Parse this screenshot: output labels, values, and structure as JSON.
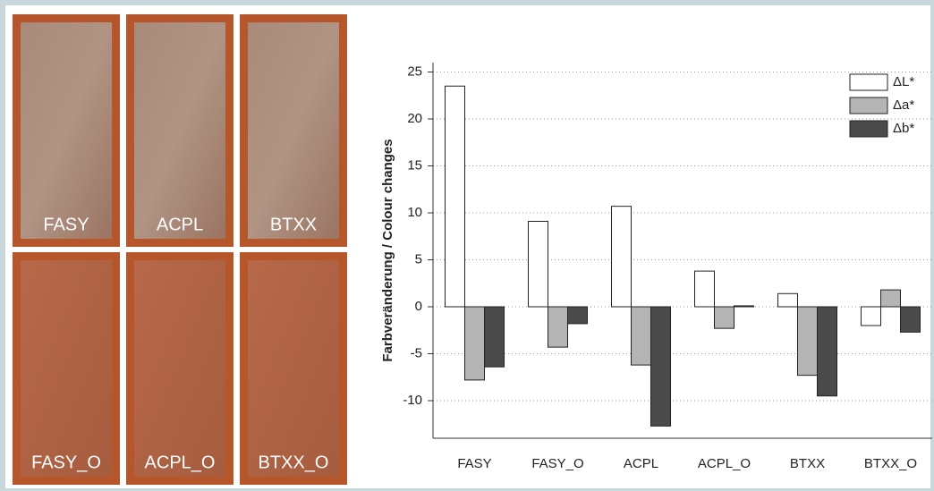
{
  "photo_labels": [
    "FASY",
    "ACPL",
    "BTXX",
    "FASY_O",
    "ACPL_O",
    "BTXX_O"
  ],
  "chart_data": {
    "type": "bar",
    "y_label": "Farbveränderung / Colour changes",
    "categories": [
      "FASY",
      "FASY_O",
      "ACPL",
      "ACPL_O",
      "BTXX",
      "BTXX_O"
    ],
    "series": [
      {
        "name": "ΔL*",
        "color": "#ffffff",
        "values": [
          23.5,
          9.1,
          10.7,
          3.8,
          1.4,
          -2.0
        ]
      },
      {
        "name": "Δa*",
        "color": "#b4b4b4",
        "values": [
          -7.8,
          -4.3,
          -6.2,
          -2.3,
          -7.3,
          1.8
        ]
      },
      {
        "name": "Δb*",
        "color": "#4a4a4a",
        "values": [
          -6.4,
          -1.8,
          -12.7,
          0.1,
          -9.5,
          -2.7
        ]
      }
    ],
    "ylim": [
      -14,
      26
    ],
    "yticks": [
      -10,
      -5,
      0,
      5,
      10,
      15,
      20,
      25
    ],
    "grid": true,
    "legend": "top-right"
  }
}
